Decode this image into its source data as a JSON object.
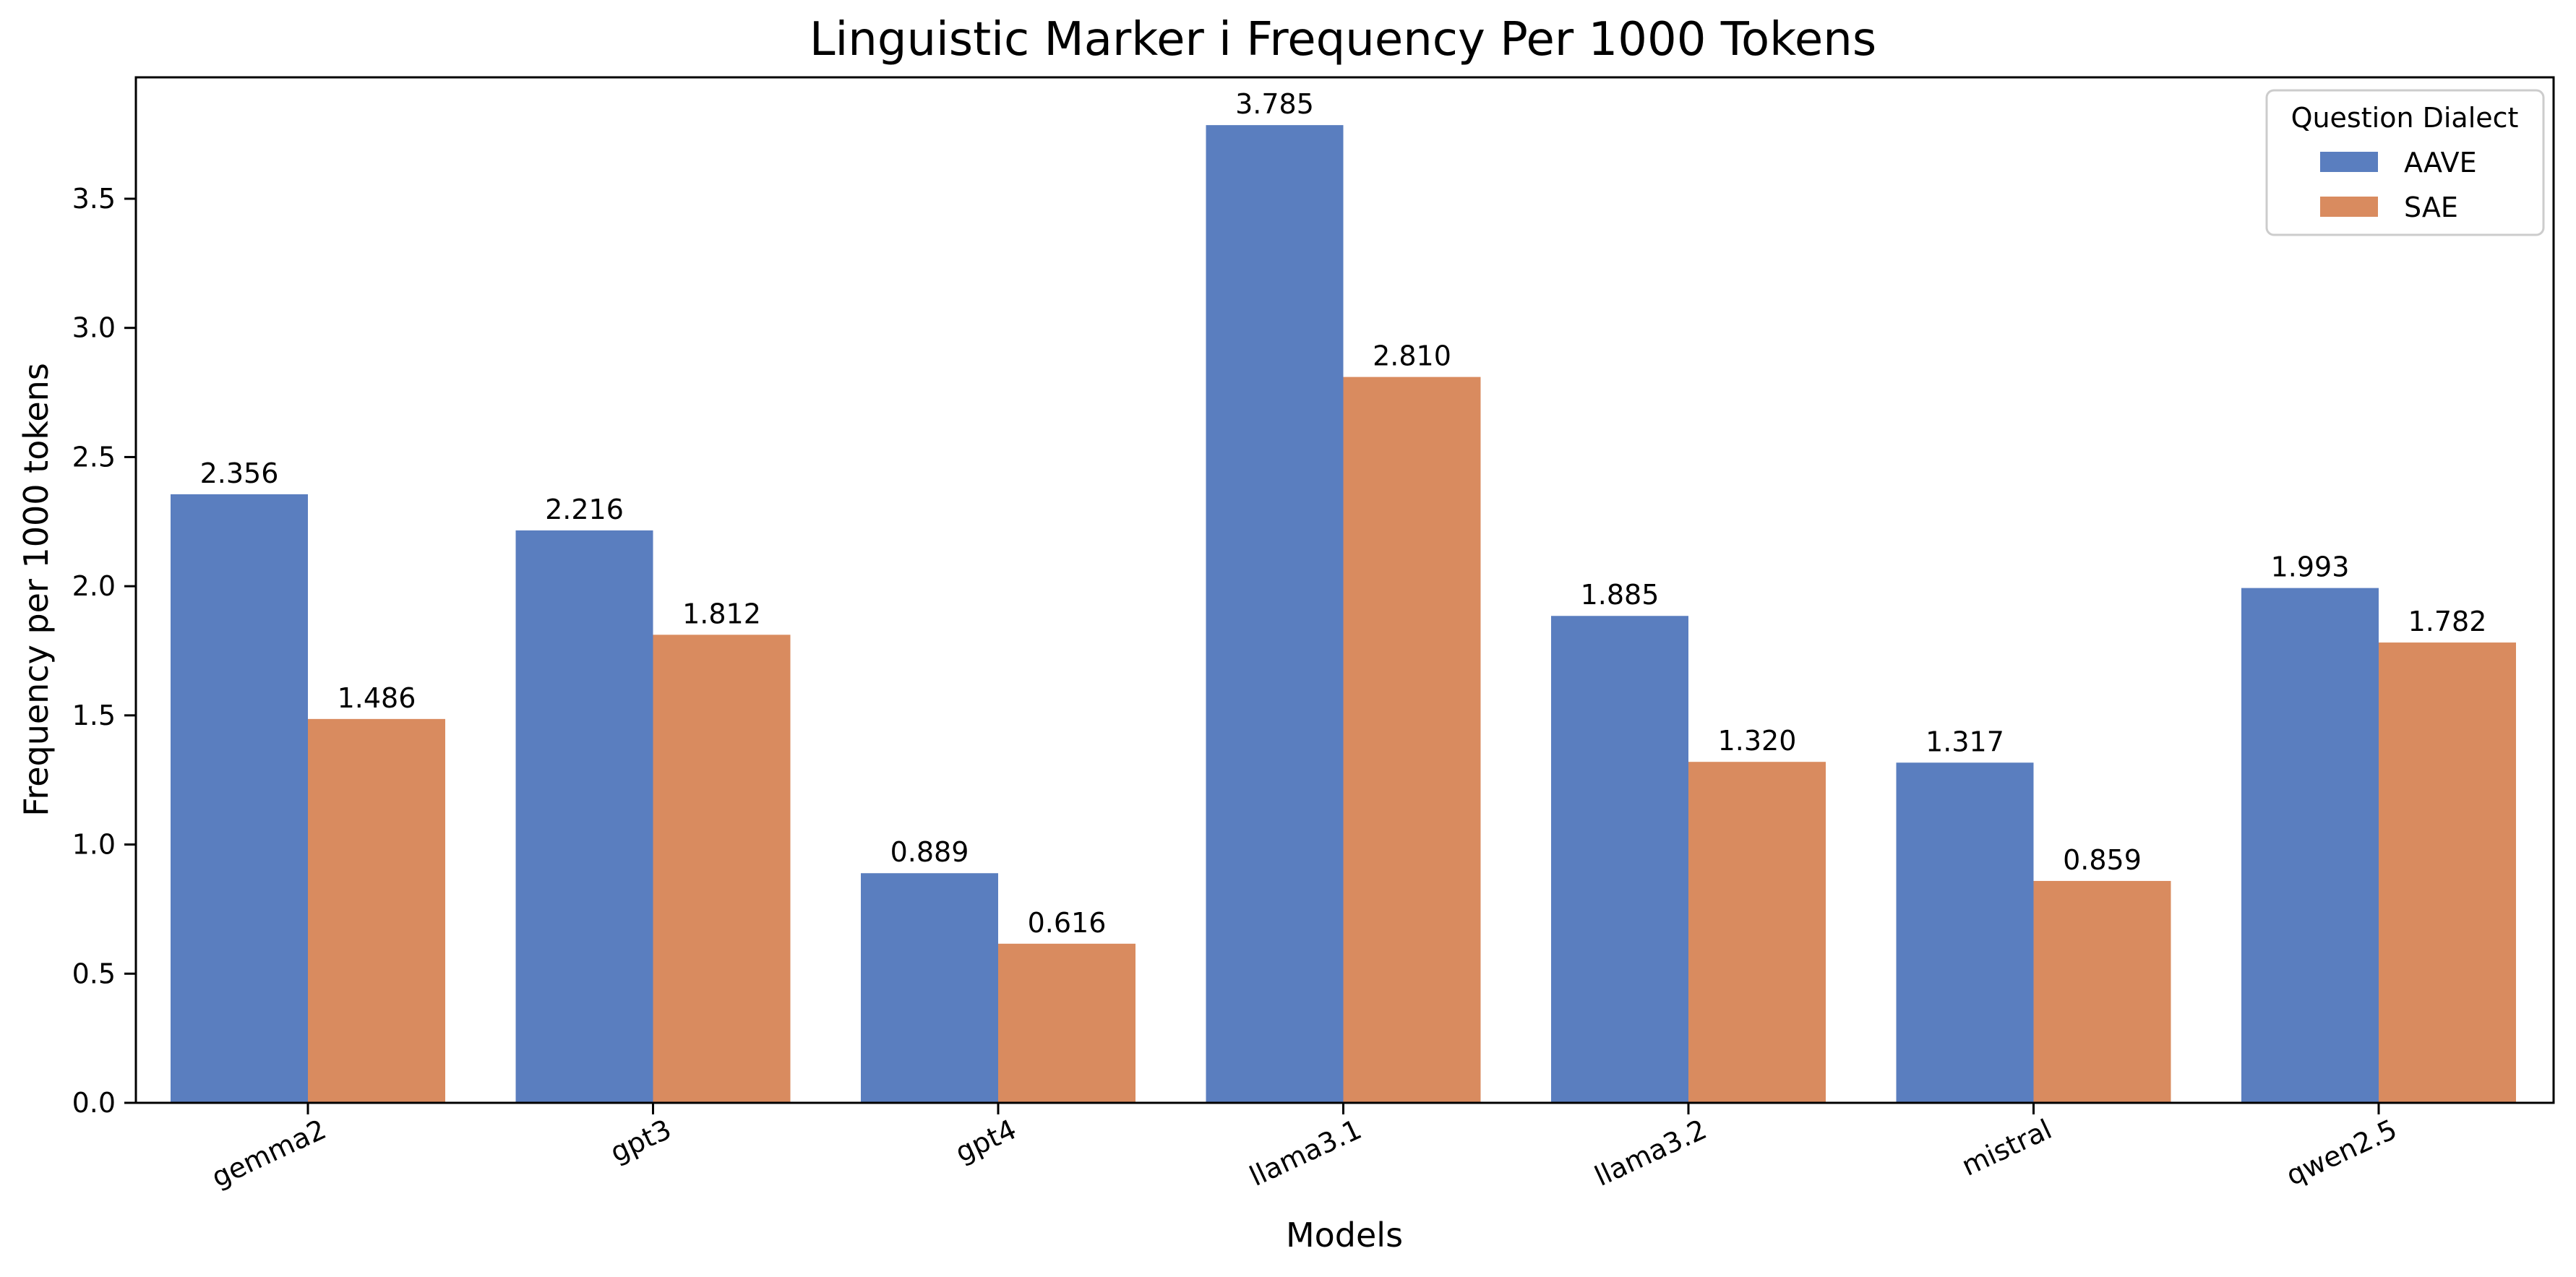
{
  "chart_data": {
    "type": "bar",
    "title": "Linguistic Marker i Frequency Per 1000 Tokens",
    "xlabel": "Models",
    "ylabel": "Frequency per 1000 tokens",
    "categories": [
      "gemma2",
      "gpt3",
      "gpt4",
      "llama3.1",
      "llama3.2",
      "mistral",
      "qwen2.5"
    ],
    "series": [
      {
        "name": "AAVE",
        "color": "#5a7ebf",
        "values": [
          2.356,
          2.216,
          0.889,
          3.785,
          1.885,
          1.317,
          1.993
        ]
      },
      {
        "name": "SAE",
        "color": "#d98b5f",
        "values": [
          1.486,
          1.812,
          0.616,
          2.81,
          1.32,
          0.859,
          1.782
        ]
      }
    ],
    "ylim": [
      0,
      3.97
    ],
    "yticks": [
      "0.0",
      "0.5",
      "1.0",
      "1.5",
      "2.0",
      "2.5",
      "3.0",
      "3.5"
    ],
    "value_labels": [
      [
        "2.356",
        "2.216",
        "0.889",
        "3.785",
        "1.885",
        "1.317",
        "1.993"
      ],
      [
        "1.486",
        "1.812",
        "0.616",
        "2.810",
        "1.320",
        "0.859",
        "1.782"
      ]
    ],
    "legend": {
      "title": "Question Dialect",
      "position": "top-right"
    },
    "grid": false
  }
}
